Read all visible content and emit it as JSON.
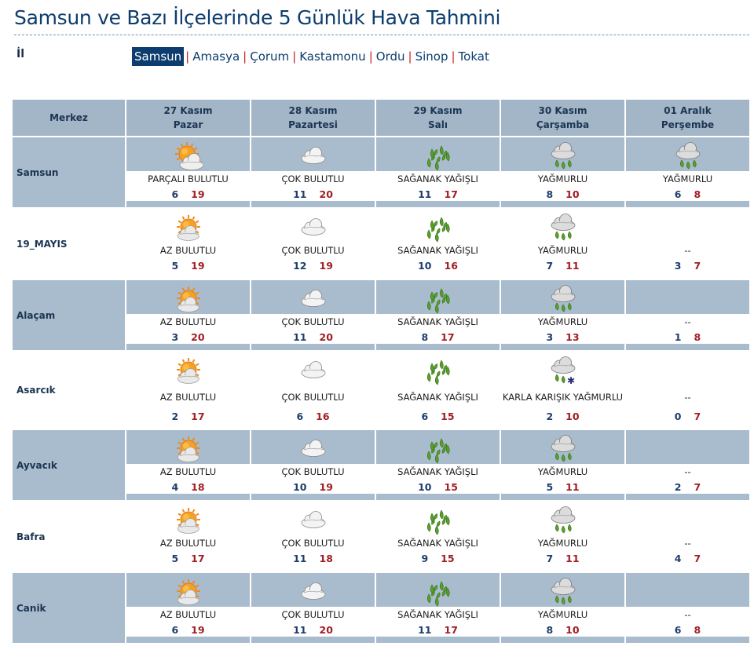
{
  "page": {
    "title": "Samsun ve Bazı İlçelerinde 5 Günlük Hava Tahmini",
    "il_label": "İl"
  },
  "provinces": [
    "Samsun",
    "Amasya",
    "Çorum",
    "Kastamonu",
    "Ordu",
    "Sinop",
    "Tokat"
  ],
  "active_province": "Samsun",
  "table": {
    "corner": "Merkez",
    "days": [
      {
        "date": "27 Kasım",
        "weekday": "Pazar"
      },
      {
        "date": "28 Kasım",
        "weekday": "Pazartesi"
      },
      {
        "date": "29 Kasım",
        "weekday": "Salı"
      },
      {
        "date": "30 Kasım",
        "weekday": "Çarşamba"
      },
      {
        "date": "01 Aralık",
        "weekday": "Perşembe"
      }
    ],
    "rows": [
      {
        "city": "Samsun",
        "cells": [
          {
            "icon": "partly-cloudy-icon",
            "desc": "PARÇALI BULUTLU",
            "min": "6",
            "max": "19"
          },
          {
            "icon": "cloudy-icon",
            "desc": "ÇOK BULUTLU",
            "min": "11",
            "max": "20"
          },
          {
            "icon": "showers-icon",
            "desc": "SAĞANAK YAĞIŞLI",
            "min": "11",
            "max": "17"
          },
          {
            "icon": "rain-icon",
            "desc": "YAĞMURLU",
            "min": "8",
            "max": "10"
          },
          {
            "icon": "rain-icon",
            "desc": "YAĞMURLU",
            "min": "6",
            "max": "8"
          }
        ]
      },
      {
        "city": "19_MAYIS",
        "cells": [
          {
            "icon": "sun-cloud-icon",
            "desc": "AZ BULUTLU",
            "min": "5",
            "max": "19"
          },
          {
            "icon": "cloudy-icon",
            "desc": "ÇOK BULUTLU",
            "min": "12",
            "max": "19"
          },
          {
            "icon": "showers-icon",
            "desc": "SAĞANAK YAĞIŞLI",
            "min": "10",
            "max": "16"
          },
          {
            "icon": "rain-icon",
            "desc": "YAĞMURLU",
            "min": "7",
            "max": "11"
          },
          {
            "icon": "",
            "desc": "--",
            "min": "3",
            "max": "7"
          }
        ]
      },
      {
        "city": "Alaçam",
        "cells": [
          {
            "icon": "sun-cloud-icon",
            "desc": "AZ BULUTLU",
            "min": "3",
            "max": "20"
          },
          {
            "icon": "cloudy-icon",
            "desc": "ÇOK BULUTLU",
            "min": "11",
            "max": "20"
          },
          {
            "icon": "showers-icon",
            "desc": "SAĞANAK YAĞIŞLI",
            "min": "8",
            "max": "17"
          },
          {
            "icon": "rain-icon",
            "desc": "YAĞMURLU",
            "min": "3",
            "max": "13"
          },
          {
            "icon": "",
            "desc": "--",
            "min": "1",
            "max": "8"
          }
        ]
      },
      {
        "city": "Asarcık",
        "cells": [
          {
            "icon": "sun-cloud-icon",
            "desc": "AZ BULUTLU",
            "min": "2",
            "max": "17"
          },
          {
            "icon": "cloudy-icon",
            "desc": "ÇOK BULUTLU",
            "min": "6",
            "max": "16"
          },
          {
            "icon": "showers-icon",
            "desc": "SAĞANAK YAĞIŞLI",
            "min": "6",
            "max": "15"
          },
          {
            "icon": "sleet-icon",
            "desc": "KARLA KARIŞIK YAĞMURLU",
            "min": "2",
            "max": "10"
          },
          {
            "icon": "",
            "desc": "--",
            "min": "0",
            "max": "7"
          }
        ]
      },
      {
        "city": "Ayvacık",
        "cells": [
          {
            "icon": "sun-cloud-icon",
            "desc": "AZ BULUTLU",
            "min": "4",
            "max": "18"
          },
          {
            "icon": "cloudy-icon",
            "desc": "ÇOK BULUTLU",
            "min": "10",
            "max": "19"
          },
          {
            "icon": "showers-icon",
            "desc": "SAĞANAK YAĞIŞLI",
            "min": "10",
            "max": "15"
          },
          {
            "icon": "rain-icon",
            "desc": "YAĞMURLU",
            "min": "5",
            "max": "11"
          },
          {
            "icon": "",
            "desc": "--",
            "min": "2",
            "max": "7"
          }
        ]
      },
      {
        "city": "Bafra",
        "cells": [
          {
            "icon": "sun-cloud-icon",
            "desc": "AZ BULUTLU",
            "min": "5",
            "max": "17"
          },
          {
            "icon": "cloudy-icon",
            "desc": "ÇOK BULUTLU",
            "min": "11",
            "max": "18"
          },
          {
            "icon": "showers-icon",
            "desc": "SAĞANAK YAĞIŞLI",
            "min": "9",
            "max": "15"
          },
          {
            "icon": "rain-icon",
            "desc": "YAĞMURLU",
            "min": "7",
            "max": "11"
          },
          {
            "icon": "",
            "desc": "--",
            "min": "4",
            "max": "7"
          }
        ]
      },
      {
        "city": "Canik",
        "cells": [
          {
            "icon": "sun-cloud-icon",
            "desc": "AZ BULUTLU",
            "min": "6",
            "max": "19"
          },
          {
            "icon": "cloudy-icon",
            "desc": "ÇOK BULUTLU",
            "min": "11",
            "max": "20"
          },
          {
            "icon": "showers-icon",
            "desc": "SAĞANAK YAĞIŞLI",
            "min": "11",
            "max": "17"
          },
          {
            "icon": "rain-icon",
            "desc": "YAĞMURLU",
            "min": "8",
            "max": "10"
          },
          {
            "icon": "",
            "desc": "--",
            "min": "6",
            "max": "8"
          }
        ]
      }
    ]
  },
  "colors": {
    "header_bg": "#a3b6c7",
    "shaded_row": "#a9bccd",
    "title": "#0d3d6e",
    "min_temp": "#1f3d6e",
    "max_temp": "#a11d23",
    "separator": "#d02020"
  }
}
